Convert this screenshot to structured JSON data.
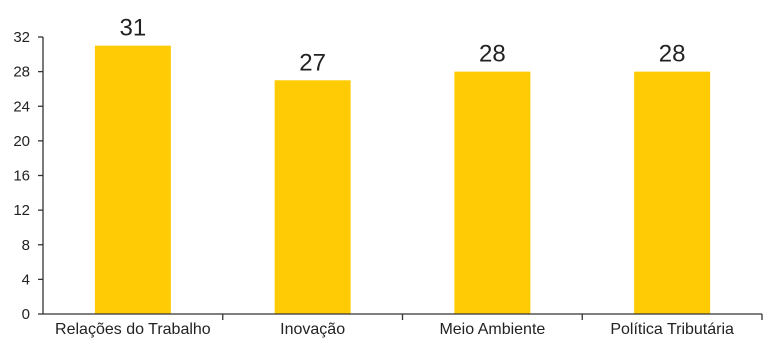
{
  "chart_data": {
    "type": "bar",
    "title": "",
    "xlabel": "",
    "ylabel": "",
    "categories": [
      "Relações do Trabalho",
      "Inovação",
      "Meio Ambiente",
      "Política Tributária"
    ],
    "values": [
      31,
      27,
      28,
      28
    ],
    "data_labels": [
      "31",
      "27",
      "28",
      "28"
    ],
    "ylim": [
      0,
      32
    ],
    "yticks": [
      0,
      4,
      8,
      12,
      16,
      20,
      24,
      28,
      32
    ],
    "ytick_labels": [
      "0",
      "4",
      "8",
      "12",
      "16",
      "20",
      "24",
      "28",
      "32"
    ],
    "bar_color": "#FFCB05",
    "axis_color": "#333333",
    "grid": false,
    "legend": "none"
  }
}
